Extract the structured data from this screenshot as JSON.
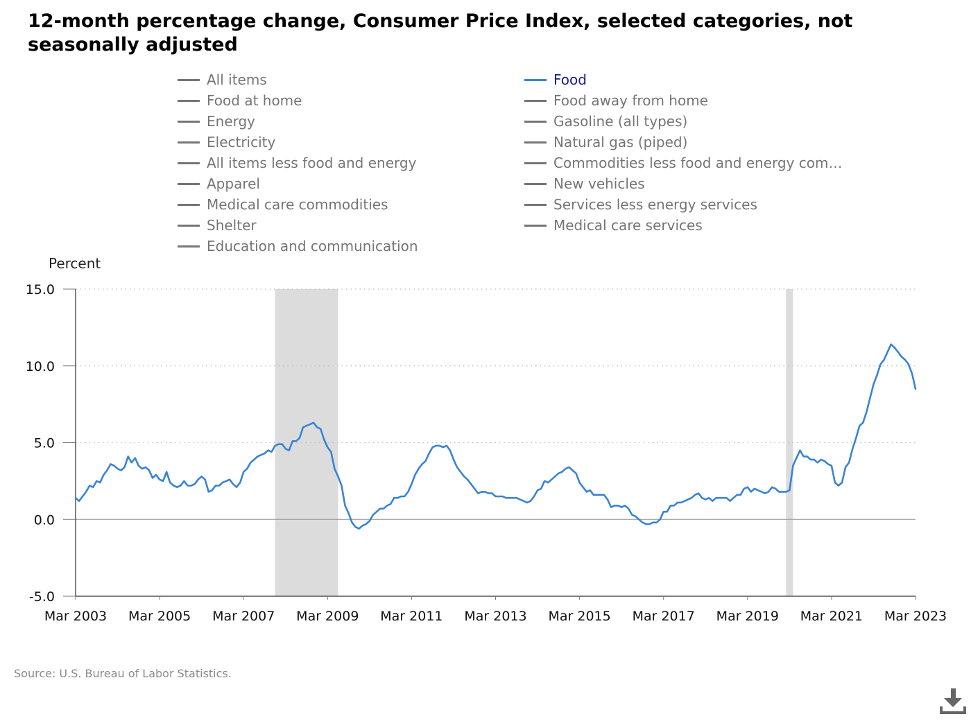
{
  "title": "12-month percentage change, Consumer Price Index, selected categories, not seasonally adjusted",
  "source": "Source: U.S. Bureau of Labor Statistics.",
  "legend": [
    {
      "label": "All items",
      "active": false
    },
    {
      "label": "Food",
      "active": true
    },
    {
      "label": "Food at home",
      "active": false
    },
    {
      "label": "Food away from home",
      "active": false
    },
    {
      "label": "Energy",
      "active": false
    },
    {
      "label": "Gasoline (all types)",
      "active": false
    },
    {
      "label": "Electricity",
      "active": false
    },
    {
      "label": "Natural gas (piped)",
      "active": false
    },
    {
      "label": "All items less food and energy",
      "active": false
    },
    {
      "label": "Commodities less food and energy com…",
      "active": false
    },
    {
      "label": "Apparel",
      "active": false
    },
    {
      "label": "New vehicles",
      "active": false
    },
    {
      "label": "Medical care commodities",
      "active": false
    },
    {
      "label": "Services less energy services",
      "active": false
    },
    {
      "label": "Shelter",
      "active": false
    },
    {
      "label": "Medical care services",
      "active": false
    },
    {
      "label": "Education and communication",
      "active": false
    }
  ],
  "colors": {
    "food_line": "#3a83d3",
    "recession": "#dcdcdc",
    "inactive": "#757575",
    "grid": "#bdbdbd"
  },
  "download_icon": "download-icon",
  "chart_data": {
    "type": "line",
    "ylabel": "Percent",
    "xlabel": "",
    "ylim": [
      -5,
      15
    ],
    "yticks": [
      "15.0",
      "10.0",
      "5.0",
      "0.0",
      "-5.0"
    ],
    "ytick_values": [
      15,
      10,
      5,
      0,
      -5
    ],
    "xticks": [
      "Mar 2003",
      "Mar 2005",
      "Mar 2007",
      "Mar 2009",
      "Mar 2011",
      "Mar 2013",
      "Mar 2015",
      "Mar 2017",
      "Mar 2019",
      "Mar 2021",
      "Mar 2023"
    ],
    "x_start": "2003-03",
    "x_end": "2023-03",
    "grid": "horizontal dotted",
    "recessions": [
      [
        "2007-12",
        "2009-06"
      ],
      [
        "2020-02",
        "2020-04"
      ]
    ],
    "series": [
      {
        "name": "Food",
        "color": "#3a83d3",
        "points": [
          [
            "2003-03",
            1.4
          ],
          [
            "2003-04",
            1.2
          ],
          [
            "2003-06",
            1.8
          ],
          [
            "2003-07",
            2.2
          ],
          [
            "2003-08",
            2.1
          ],
          [
            "2003-09",
            2.5
          ],
          [
            "2003-10",
            2.4
          ],
          [
            "2003-11",
            2.9
          ],
          [
            "2003-12",
            3.2
          ],
          [
            "2004-01",
            3.6
          ],
          [
            "2004-02",
            3.5
          ],
          [
            "2004-03",
            3.3
          ],
          [
            "2004-04",
            3.2
          ],
          [
            "2004-05",
            3.4
          ],
          [
            "2004-06",
            4.1
          ],
          [
            "2004-07",
            3.7
          ],
          [
            "2004-08",
            4.0
          ],
          [
            "2004-09",
            3.5
          ],
          [
            "2004-10",
            3.3
          ],
          [
            "2004-11",
            3.4
          ],
          [
            "2004-12",
            3.2
          ],
          [
            "2005-01",
            2.7
          ],
          [
            "2005-02",
            2.9
          ],
          [
            "2005-03",
            2.6
          ],
          [
            "2005-04",
            2.5
          ],
          [
            "2005-05",
            3.1
          ],
          [
            "2005-06",
            2.4
          ],
          [
            "2005-07",
            2.2
          ],
          [
            "2005-08",
            2.1
          ],
          [
            "2005-09",
            2.2
          ],
          [
            "2005-10",
            2.5
          ],
          [
            "2005-11",
            2.2
          ],
          [
            "2005-12",
            2.2
          ],
          [
            "2006-01",
            2.3
          ],
          [
            "2006-02",
            2.6
          ],
          [
            "2006-03",
            2.8
          ],
          [
            "2006-04",
            2.6
          ],
          [
            "2006-05",
            1.8
          ],
          [
            "2006-06",
            1.9
          ],
          [
            "2006-07",
            2.2
          ],
          [
            "2006-08",
            2.2
          ],
          [
            "2006-09",
            2.4
          ],
          [
            "2006-10",
            2.5
          ],
          [
            "2006-11",
            2.6
          ],
          [
            "2006-12",
            2.3
          ],
          [
            "2007-01",
            2.1
          ],
          [
            "2007-02",
            2.4
          ],
          [
            "2007-03",
            3.1
          ],
          [
            "2007-04",
            3.3
          ],
          [
            "2007-05",
            3.7
          ],
          [
            "2007-06",
            3.9
          ],
          [
            "2007-07",
            4.1
          ],
          [
            "2007-08",
            4.2
          ],
          [
            "2007-09",
            4.3
          ],
          [
            "2007-10",
            4.5
          ],
          [
            "2007-11",
            4.4
          ],
          [
            "2007-12",
            4.8
          ],
          [
            "2008-01",
            4.9
          ],
          [
            "2008-02",
            4.9
          ],
          [
            "2008-03",
            4.6
          ],
          [
            "2008-04",
            4.5
          ],
          [
            "2008-05",
            5.1
          ],
          [
            "2008-06",
            5.1
          ],
          [
            "2008-07",
            5.3
          ],
          [
            "2008-08",
            6.0
          ],
          [
            "2008-09",
            6.1
          ],
          [
            "2008-10",
            6.2
          ],
          [
            "2008-11",
            6.3
          ],
          [
            "2008-12",
            6.0
          ],
          [
            "2009-01",
            5.9
          ],
          [
            "2009-02",
            5.2
          ],
          [
            "2009-03",
            4.7
          ],
          [
            "2009-04",
            4.4
          ],
          [
            "2009-05",
            3.3
          ],
          [
            "2009-06",
            2.8
          ],
          [
            "2009-07",
            2.2
          ],
          [
            "2009-08",
            0.9
          ],
          [
            "2009-09",
            0.4
          ],
          [
            "2009-10",
            -0.2
          ],
          [
            "2009-11",
            -0.5
          ],
          [
            "2009-12",
            -0.6
          ],
          [
            "2010-01",
            -0.4
          ],
          [
            "2010-02",
            -0.3
          ],
          [
            "2010-03",
            -0.1
          ],
          [
            "2010-04",
            0.3
          ],
          [
            "2010-05",
            0.5
          ],
          [
            "2010-06",
            0.7
          ],
          [
            "2010-07",
            0.7
          ],
          [
            "2010-08",
            0.9
          ],
          [
            "2010-09",
            1.0
          ],
          [
            "2010-10",
            1.4
          ],
          [
            "2010-11",
            1.4
          ],
          [
            "2010-12",
            1.5
          ],
          [
            "2011-01",
            1.5
          ],
          [
            "2011-02",
            1.8
          ],
          [
            "2011-03",
            2.3
          ],
          [
            "2011-04",
            2.9
          ],
          [
            "2011-05",
            3.3
          ],
          [
            "2011-06",
            3.6
          ],
          [
            "2011-07",
            3.8
          ],
          [
            "2011-08",
            4.3
          ],
          [
            "2011-09",
            4.7
          ],
          [
            "2011-10",
            4.8
          ],
          [
            "2011-11",
            4.8
          ],
          [
            "2011-12",
            4.7
          ],
          [
            "2012-01",
            4.8
          ],
          [
            "2012-02",
            4.5
          ],
          [
            "2012-03",
            3.9
          ],
          [
            "2012-04",
            3.4
          ],
          [
            "2012-05",
            3.1
          ],
          [
            "2012-06",
            2.8
          ],
          [
            "2012-07",
            2.6
          ],
          [
            "2012-08",
            2.3
          ],
          [
            "2012-09",
            2.0
          ],
          [
            "2012-10",
            1.7
          ],
          [
            "2012-11",
            1.8
          ],
          [
            "2012-12",
            1.8
          ],
          [
            "2013-01",
            1.7
          ],
          [
            "2013-02",
            1.7
          ],
          [
            "2013-03",
            1.5
          ],
          [
            "2013-04",
            1.5
          ],
          [
            "2013-05",
            1.5
          ],
          [
            "2013-06",
            1.4
          ],
          [
            "2013-07",
            1.4
          ],
          [
            "2013-08",
            1.4
          ],
          [
            "2013-09",
            1.4
          ],
          [
            "2013-10",
            1.3
          ],
          [
            "2013-11",
            1.2
          ],
          [
            "2013-12",
            1.1
          ],
          [
            "2014-01",
            1.2
          ],
          [
            "2014-02",
            1.5
          ],
          [
            "2014-03",
            1.9
          ],
          [
            "2014-04",
            2.0
          ],
          [
            "2014-05",
            2.5
          ],
          [
            "2014-06",
            2.4
          ],
          [
            "2014-07",
            2.6
          ],
          [
            "2014-08",
            2.8
          ],
          [
            "2014-09",
            3.0
          ],
          [
            "2014-10",
            3.1
          ],
          [
            "2014-11",
            3.3
          ],
          [
            "2014-12",
            3.4
          ],
          [
            "2015-01",
            3.2
          ],
          [
            "2015-02",
            3.0
          ],
          [
            "2015-03",
            2.4
          ],
          [
            "2015-04",
            2.1
          ],
          [
            "2015-05",
            1.8
          ],
          [
            "2015-06",
            1.9
          ],
          [
            "2015-07",
            1.6
          ],
          [
            "2015-08",
            1.6
          ],
          [
            "2015-09",
            1.6
          ],
          [
            "2015-10",
            1.6
          ],
          [
            "2015-11",
            1.3
          ],
          [
            "2015-12",
            0.8
          ],
          [
            "2016-01",
            0.9
          ],
          [
            "2016-02",
            0.9
          ],
          [
            "2016-03",
            0.8
          ],
          [
            "2016-04",
            0.9
          ],
          [
            "2016-05",
            0.7
          ],
          [
            "2016-06",
            0.3
          ],
          [
            "2016-07",
            0.2
          ],
          [
            "2016-08",
            0.0
          ],
          [
            "2016-09",
            -0.2
          ],
          [
            "2016-10",
            -0.3
          ],
          [
            "2016-11",
            -0.3
          ],
          [
            "2016-12",
            -0.2
          ],
          [
            "2017-01",
            -0.2
          ],
          [
            "2017-02",
            0.0
          ],
          [
            "2017-03",
            0.5
          ],
          [
            "2017-04",
            0.5
          ],
          [
            "2017-05",
            0.9
          ],
          [
            "2017-06",
            0.9
          ],
          [
            "2017-07",
            1.1
          ],
          [
            "2017-08",
            1.1
          ],
          [
            "2017-09",
            1.2
          ],
          [
            "2017-10",
            1.3
          ],
          [
            "2017-11",
            1.4
          ],
          [
            "2017-12",
            1.6
          ],
          [
            "2018-01",
            1.7
          ],
          [
            "2018-02",
            1.4
          ],
          [
            "2018-03",
            1.3
          ],
          [
            "2018-04",
            1.4
          ],
          [
            "2018-05",
            1.2
          ],
          [
            "2018-06",
            1.4
          ],
          [
            "2018-07",
            1.4
          ],
          [
            "2018-08",
            1.4
          ],
          [
            "2018-09",
            1.4
          ],
          [
            "2018-10",
            1.2
          ],
          [
            "2018-11",
            1.4
          ],
          [
            "2018-12",
            1.6
          ],
          [
            "2019-01",
            1.6
          ],
          [
            "2019-02",
            2.0
          ],
          [
            "2019-03",
            2.1
          ],
          [
            "2019-04",
            1.8
          ],
          [
            "2019-05",
            2.0
          ],
          [
            "2019-06",
            1.9
          ],
          [
            "2019-07",
            1.8
          ],
          [
            "2019-08",
            1.7
          ],
          [
            "2019-09",
            1.8
          ],
          [
            "2019-10",
            2.1
          ],
          [
            "2019-11",
            2.0
          ],
          [
            "2019-12",
            1.8
          ],
          [
            "2020-01",
            1.8
          ],
          [
            "2020-02",
            1.8
          ],
          [
            "2020-03",
            1.9
          ],
          [
            "2020-04",
            3.5
          ],
          [
            "2020-05",
            4.0
          ],
          [
            "2020-06",
            4.5
          ],
          [
            "2020-07",
            4.1
          ],
          [
            "2020-08",
            4.1
          ],
          [
            "2020-09",
            3.9
          ],
          [
            "2020-10",
            3.9
          ],
          [
            "2020-11",
            3.7
          ],
          [
            "2020-12",
            3.9
          ],
          [
            "2021-01",
            3.8
          ],
          [
            "2021-02",
            3.6
          ],
          [
            "2021-03",
            3.5
          ],
          [
            "2021-04",
            2.4
          ],
          [
            "2021-05",
            2.2
          ],
          [
            "2021-06",
            2.4
          ],
          [
            "2021-07",
            3.4
          ],
          [
            "2021-08",
            3.7
          ],
          [
            "2021-09",
            4.6
          ],
          [
            "2021-10",
            5.3
          ],
          [
            "2021-11",
            6.1
          ],
          [
            "2021-12",
            6.3
          ],
          [
            "2022-01",
            7.0
          ],
          [
            "2022-02",
            7.9
          ],
          [
            "2022-03",
            8.8
          ],
          [
            "2022-04",
            9.4
          ],
          [
            "2022-05",
            10.1
          ],
          [
            "2022-06",
            10.4
          ],
          [
            "2022-07",
            10.9
          ],
          [
            "2022-08",
            11.4
          ],
          [
            "2022-09",
            11.2
          ],
          [
            "2022-10",
            10.9
          ],
          [
            "2022-11",
            10.6
          ],
          [
            "2022-12",
            10.4
          ],
          [
            "2023-01",
            10.1
          ],
          [
            "2023-02",
            9.5
          ],
          [
            "2023-03",
            8.5
          ]
        ]
      }
    ]
  }
}
